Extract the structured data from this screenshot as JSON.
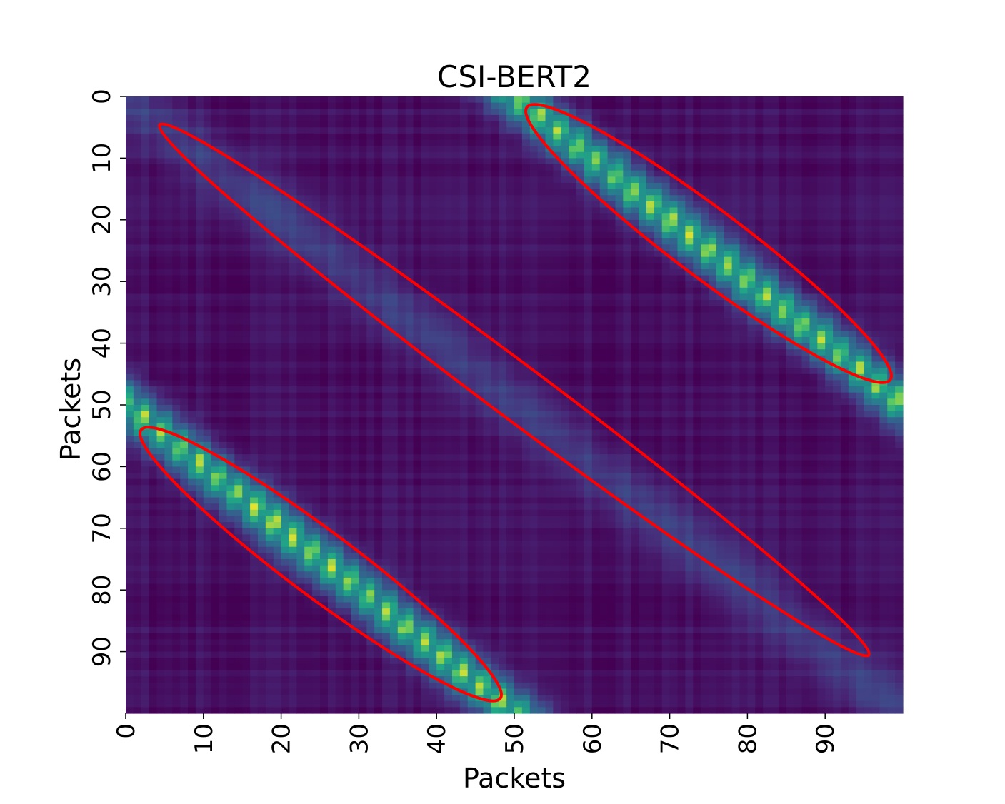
{
  "chart_data": {
    "type": "heatmap",
    "title": "CSI-BERT2",
    "xlabel": "Packets",
    "ylabel": "Packets",
    "n_rows": 100,
    "n_cols": 100,
    "x_ticks": [
      "0",
      "10",
      "20",
      "30",
      "40",
      "50",
      "60",
      "70",
      "80",
      "90"
    ],
    "y_ticks": [
      "0",
      "10",
      "20",
      "30",
      "40",
      "50",
      "60",
      "70",
      "80",
      "90"
    ],
    "tick_values": [
      0,
      10,
      20,
      30,
      40,
      50,
      60,
      70,
      80,
      90
    ],
    "colormap": "viridis",
    "value_range": [
      0,
      1
    ],
    "colorbar": false,
    "description_of_values": "Similarity matrix: strong bands where |row - col| is about 50 (brightest near (53,0), (2,55), (97,48), (46,98)); a faint band along the main diagonal; low values elsewhere.",
    "bands": [
      {
        "name": "upper-right band",
        "offset": -50,
        "peak": 0.9
      },
      {
        "name": "lower-left band",
        "offset": 50,
        "peak": 0.9
      },
      {
        "name": "main diagonal",
        "offset": 0,
        "peak": 0.22
      }
    ],
    "annotations": [
      {
        "shape": "ellipse",
        "color": "#ff0000",
        "encloses": "main diagonal band, from (2,1) to (97,93)"
      },
      {
        "shape": "ellipse",
        "color": "#ff0000",
        "encloses": "upper-right band, from (52,1) to (96,46)"
      },
      {
        "shape": "ellipse",
        "color": "#ff0000",
        "encloses": "lower-left band, from (2,53) to (48,98)"
      }
    ]
  }
}
